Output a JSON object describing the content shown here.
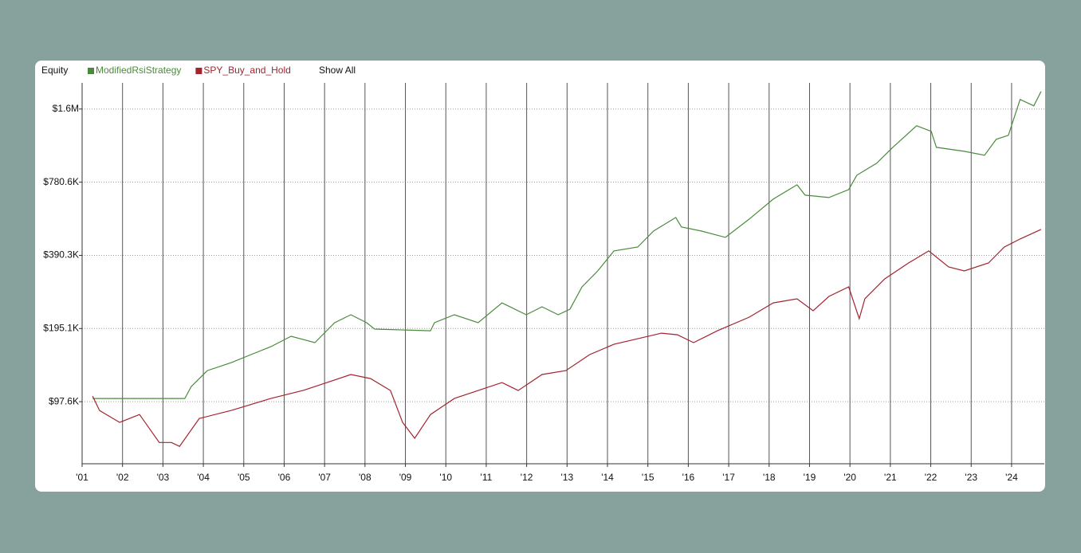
{
  "chart_data": {
    "type": "line",
    "title": "Equity",
    "log_scale": true,
    "grid": true,
    "xlim": [
      2001,
      2024.81
    ],
    "xticks": [
      {
        "value": 2001,
        "label": "'01"
      },
      {
        "value": 2002,
        "label": "'02"
      },
      {
        "value": 2003,
        "label": "'03"
      },
      {
        "value": 2004,
        "label": "'04"
      },
      {
        "value": 2005,
        "label": "'05"
      },
      {
        "value": 2006,
        "label": "'06"
      },
      {
        "value": 2007,
        "label": "'07"
      },
      {
        "value": 2008,
        "label": "'08"
      },
      {
        "value": 2009,
        "label": "'09"
      },
      {
        "value": 2010,
        "label": "'10"
      },
      {
        "value": 2011,
        "label": "'11"
      },
      {
        "value": 2012,
        "label": "'12"
      },
      {
        "value": 2013,
        "label": "'13"
      },
      {
        "value": 2014,
        "label": "'14"
      },
      {
        "value": 2015,
        "label": "'15"
      },
      {
        "value": 2016,
        "label": "'16"
      },
      {
        "value": 2017,
        "label": "'17"
      },
      {
        "value": 2018,
        "label": "'18"
      },
      {
        "value": 2019,
        "label": "'19"
      },
      {
        "value": 2020,
        "label": "'20"
      },
      {
        "value": 2021,
        "label": "'21"
      },
      {
        "value": 2022,
        "label": "'22"
      },
      {
        "value": 2023,
        "label": "'23"
      },
      {
        "value": 2024,
        "label": "'24"
      }
    ],
    "ylim": [
      54200,
      2000000
    ],
    "yticks": [
      {
        "value": 97570,
        "label": "$97.6K"
      },
      {
        "value": 195140,
        "label": "$195.1K"
      },
      {
        "value": 390280,
        "label": "$390.3K"
      },
      {
        "value": 780560,
        "label": "$780.6K"
      },
      {
        "value": 1561120,
        "label": "$1.6M"
      }
    ],
    "series": [
      {
        "name": "ModifiedRsiStrategy",
        "color": "#4a8a3c",
        "x": [
          2001.26,
          2003.54,
          2003.7,
          2004.1,
          2004.69,
          2005.18,
          2005.67,
          2006.17,
          2006.76,
          2007.25,
          2007.65,
          2008.04,
          2008.24,
          2009.62,
          2009.72,
          2010.21,
          2010.8,
          2011.39,
          2011.99,
          2012.38,
          2012.78,
          2013.07,
          2013.37,
          2013.76,
          2014.16,
          2014.75,
          2015.14,
          2015.69,
          2015.83,
          2016.33,
          2016.92,
          2017.51,
          2018.1,
          2018.69,
          2018.89,
          2019.48,
          2019.97,
          2020.17,
          2020.66,
          2021.06,
          2021.65,
          2022.01,
          2022.14,
          2022.83,
          2023.33,
          2023.62,
          2023.92,
          2024.21,
          2024.55,
          2024.73
        ],
        "values": [
          100600,
          100600,
          112600,
          131000,
          141300,
          152400,
          164300,
          181300,
          170700,
          206200,
          222400,
          206200,
          194100,
          191100,
          206200,
          222400,
          206200,
          248900,
          222400,
          239700,
          222400,
          234400,
          289500,
          336700,
          406900,
          422500,
          491300,
          558800,
          510400,
          491300,
          462600,
          550400,
          664700,
          761700,
          690400,
          674900,
          727900,
          833700,
          934000,
          1086000,
          1332000,
          1264000,
          1086000,
          1046000,
          1007000,
          1172000,
          1217000,
          1709000,
          1609000,
          1844000
        ]
      },
      {
        "name": "SPY_Buy_and_Hold",
        "color": "#a3232f",
        "x": [
          2001.26,
          2001.43,
          2001.93,
          2002.42,
          2002.91,
          2003.21,
          2003.41,
          2003.9,
          2004.69,
          2005.67,
          2006.46,
          2007.06,
          2007.65,
          2008.14,
          2008.63,
          2008.93,
          2009.23,
          2009.62,
          2010.21,
          2010.8,
          2011.39,
          2011.79,
          2012.38,
          2012.97,
          2013.56,
          2014.16,
          2014.75,
          2015.34,
          2015.73,
          2016.13,
          2016.72,
          2017.51,
          2018.1,
          2018.69,
          2019.09,
          2019.48,
          2019.97,
          2020.23,
          2020.37,
          2020.86,
          2021.45,
          2021.95,
          2022.44,
          2022.83,
          2023.43,
          2023.82,
          2024.21,
          2024.73
        ],
        "values": [
          102900,
          89800,
          80200,
          86400,
          66300,
          66300,
          63900,
          83200,
          89800,
          100600,
          108500,
          117000,
          126200,
          121500,
          108500,
          80200,
          69000,
          86400,
          100600,
          108500,
          117000,
          108500,
          126200,
          131000,
          152400,
          168100,
          177200,
          186800,
          184000,
          170700,
          191100,
          217300,
          248900,
          258600,
          230900,
          264500,
          289500,
          214100,
          258600,
          312300,
          363200,
          406900,
          349800,
          336700,
          363200,
          422500,
          455700,
          498900
        ]
      }
    ]
  },
  "controls": {
    "show_all": "Show All"
  }
}
